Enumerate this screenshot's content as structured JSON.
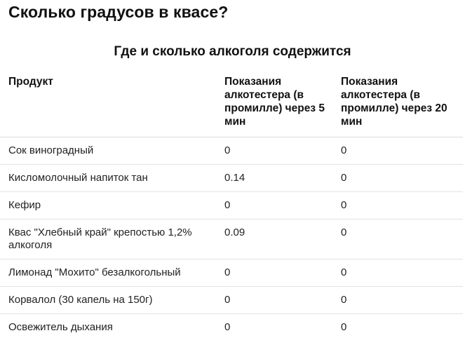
{
  "page": {
    "title": "Сколько градусов в квасе?"
  },
  "table": {
    "title": "Где и сколько алкоголя содержится",
    "headers": [
      "Продукт",
      "Показания алкотестера (в промилле) через 5 мин",
      "Показания алкотестера (в промилле) через 20 мин"
    ],
    "rows": [
      [
        "Сок виноградный",
        "0",
        "0"
      ],
      [
        "Кисломолочный напиток тан",
        "0.14",
        "0"
      ],
      [
        "Кефир",
        "0",
        "0"
      ],
      [
        "Квас \"Хлебный край\" крепостью 1,2% алкоголя",
        "0.09",
        "0"
      ],
      [
        "Лимонад \"Мохито\" безалкогольный",
        "0",
        "0"
      ],
      [
        "Корвалол (30 капель на 150г)",
        "0",
        "0"
      ],
      [
        "Освежитель дыхания",
        "0",
        "0"
      ]
    ]
  }
}
